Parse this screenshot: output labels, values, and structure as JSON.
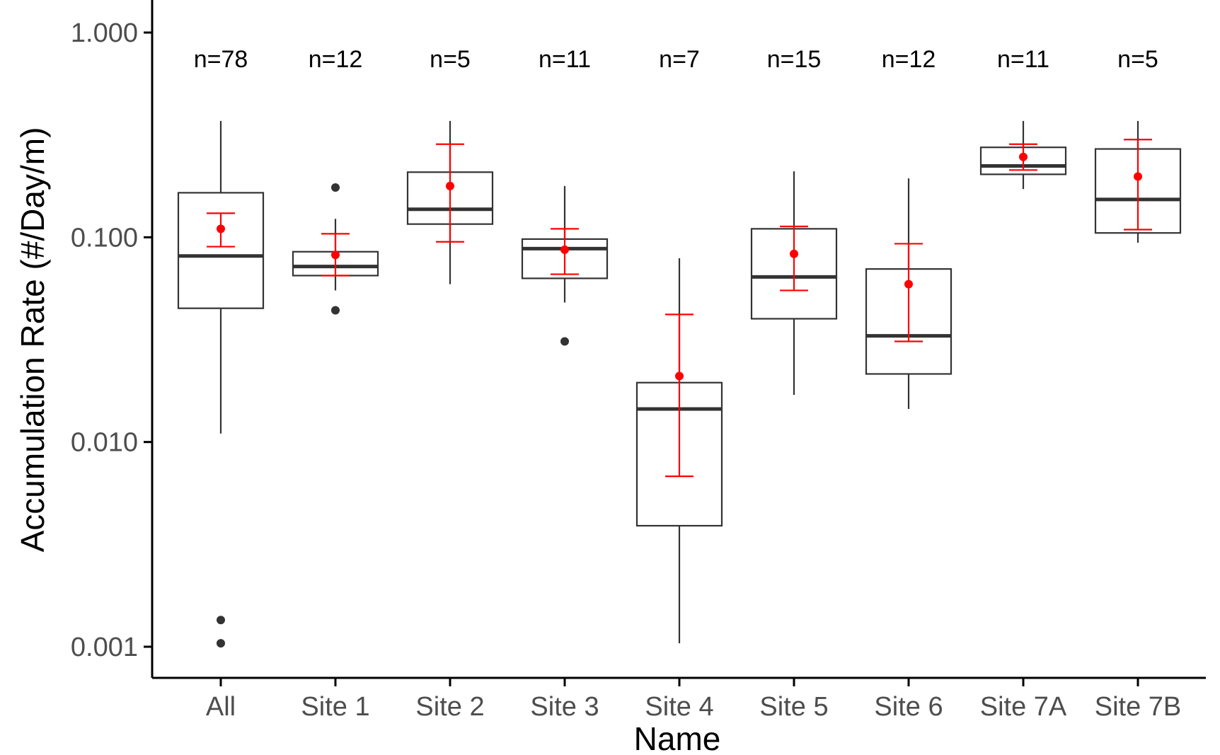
{
  "chart_data": {
    "type": "boxplot",
    "title": "",
    "xlabel": "Name",
    "ylabel": "Accumulation Rate (#/Day/m)",
    "yscale": "log10",
    "ylim": [
      0.0008,
      1.2
    ],
    "yticks": [
      {
        "value": 0.001,
        "label": "0.001"
      },
      {
        "value": 0.01,
        "label": "0.010"
      },
      {
        "value": 0.1,
        "label": "0.100"
      },
      {
        "value": 1,
        "label": "1.000"
      }
    ],
    "categories": [
      "All",
      "Site 1",
      "Site 2",
      "Site 3",
      "Site 4",
      "Site 5",
      "Site 6",
      "Site 7A",
      "Site 7B"
    ],
    "counts": [
      "n=78",
      "n=12",
      "n=5",
      "n=11",
      "n=7",
      "n=15",
      "n=12",
      "n=11",
      "n=5"
    ],
    "boxes": [
      {
        "name": "All",
        "whisker_low": 0.011,
        "q1": 0.045,
        "median": 0.081,
        "q3": 0.165,
        "whisker_high": 0.37,
        "outliers": [
          0.00135,
          0.00104
        ],
        "mean": 0.11,
        "ci_low": 0.09,
        "ci_high": 0.131
      },
      {
        "name": "Site 1",
        "whisker_low": 0.055,
        "q1": 0.065,
        "median": 0.072,
        "q3": 0.085,
        "whisker_high": 0.123,
        "outliers": [
          0.175,
          0.044
        ],
        "mean": 0.082,
        "ci_low": 0.065,
        "ci_high": 0.104
      },
      {
        "name": "Site 2",
        "whisker_low": 0.059,
        "q1": 0.116,
        "median": 0.137,
        "q3": 0.208,
        "whisker_high": 0.37,
        "outliers": [],
        "mean": 0.178,
        "ci_low": 0.095,
        "ci_high": 0.285
      },
      {
        "name": "Site 3",
        "whisker_low": 0.048,
        "q1": 0.063,
        "median": 0.088,
        "q3": 0.098,
        "whisker_high": 0.178,
        "outliers": [
          0.031
        ],
        "mean": 0.087,
        "ci_low": 0.066,
        "ci_high": 0.11
      },
      {
        "name": "Site 4",
        "whisker_low": 0.00104,
        "q1": 0.0039,
        "median": 0.0145,
        "q3": 0.0195,
        "whisker_high": 0.079,
        "outliers": [],
        "mean": 0.021,
        "ci_low": 0.0068,
        "ci_high": 0.042
      },
      {
        "name": "Site 5",
        "whisker_low": 0.017,
        "q1": 0.04,
        "median": 0.064,
        "q3": 0.11,
        "whisker_high": 0.21,
        "outliers": [],
        "mean": 0.083,
        "ci_low": 0.055,
        "ci_high": 0.113
      },
      {
        "name": "Site 6",
        "whisker_low": 0.0145,
        "q1": 0.0215,
        "median": 0.033,
        "q3": 0.07,
        "whisker_high": 0.194,
        "outliers": [],
        "mean": 0.059,
        "ci_low": 0.031,
        "ci_high": 0.093
      },
      {
        "name": "Site 7A",
        "whisker_low": 0.172,
        "q1": 0.203,
        "median": 0.223,
        "q3": 0.275,
        "whisker_high": 0.37,
        "outliers": [],
        "mean": 0.247,
        "ci_low": 0.213,
        "ci_high": 0.285
      },
      {
        "name": "Site 7B",
        "whisker_low": 0.094,
        "q1": 0.105,
        "median": 0.153,
        "q3": 0.27,
        "whisker_high": 0.37,
        "outliers": [],
        "mean": 0.198,
        "ci_low": 0.109,
        "ci_high": 0.3
      }
    ],
    "colors": {
      "box_stroke": "#333333",
      "median": "#333333",
      "whisker": "#333333",
      "outlier": "#333333",
      "mean": "#ff0000",
      "errorbar": "#ff0000",
      "axis": "#000000",
      "tick_text": "#4d4d4d"
    }
  }
}
